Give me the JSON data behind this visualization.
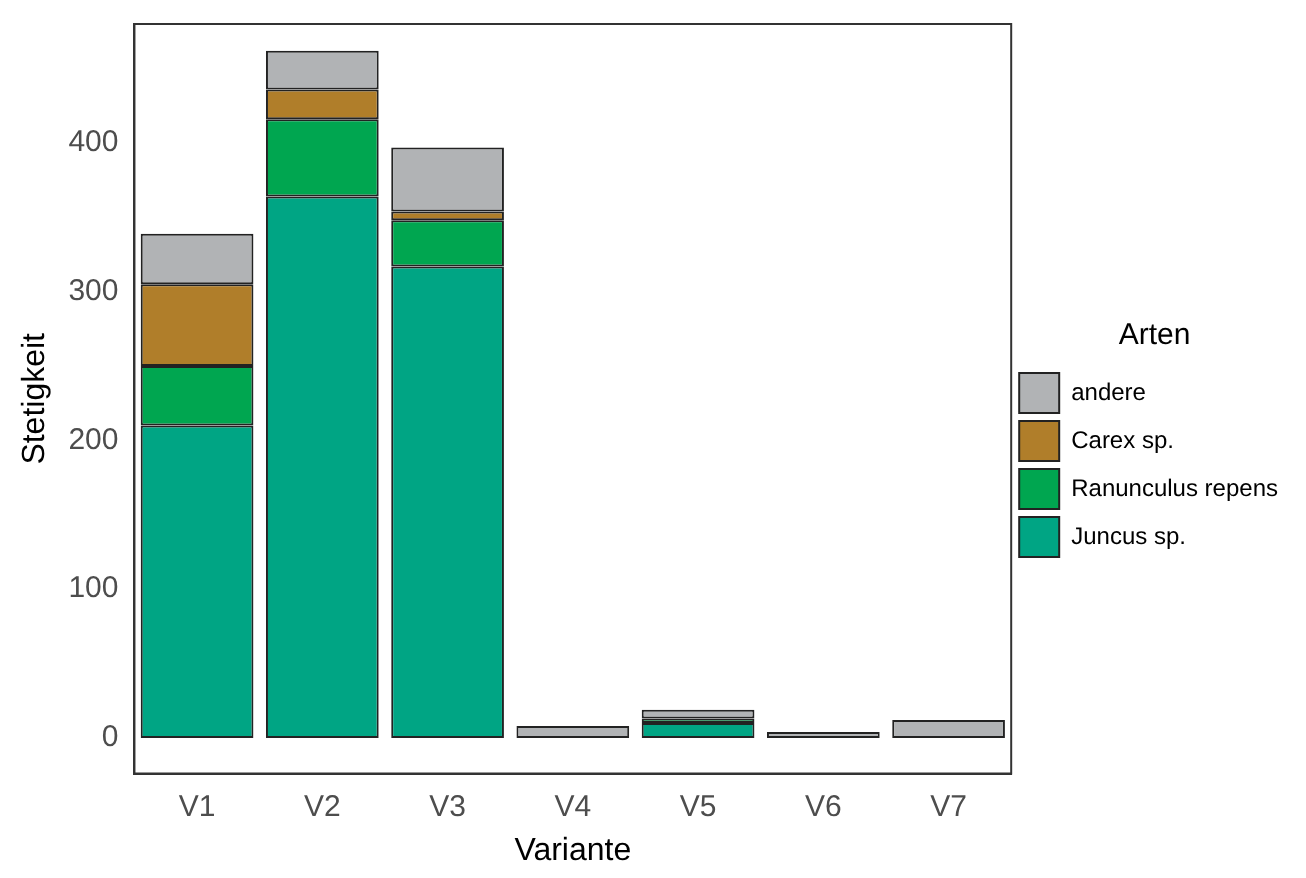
{
  "chart_data": {
    "type": "bar",
    "stacked": true,
    "xlabel": "Variante",
    "ylabel": "Stetigkeit",
    "legend_title": "Arten",
    "legend": "right",
    "categories": [
      "V1",
      "V2",
      "V3",
      "V4",
      "V5",
      "V6",
      "V7"
    ],
    "series": [
      {
        "name": "Juncus sp.",
        "color": "#00a584",
        "values": [
          210,
          364,
          317,
          0,
          10,
          0,
          0
        ]
      },
      {
        "name": "Ranunculus repens",
        "color": "#00a650",
        "values": [
          40,
          52,
          31,
          0,
          3,
          0,
          0
        ]
      },
      {
        "name": "Carex sp.",
        "color": "#b07e2a",
        "values": [
          55,
          20,
          6,
          0,
          0,
          0,
          0
        ]
      },
      {
        "name": "andere",
        "color": "#b1b3b5",
        "values": [
          34,
          26,
          43,
          8,
          6,
          4,
          12
        ]
      }
    ],
    "ylim": [
      -24,
      480
    ],
    "yticks": [
      0,
      100,
      200,
      300,
      400
    ],
    "grid": false
  }
}
